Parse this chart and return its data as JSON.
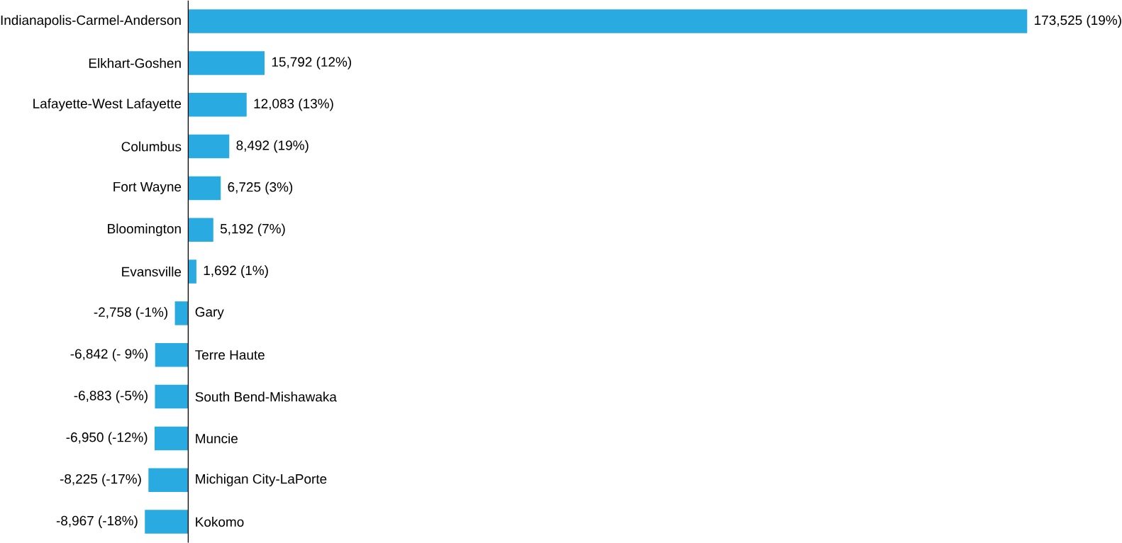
{
  "chart_data": {
    "type": "bar",
    "orientation": "horizontal",
    "color": "#29abe2",
    "categories": [
      "Indianapolis-Carmel-Anderson",
      "Elkhart-Goshen",
      "Lafayette-West Lafayette",
      "Columbus",
      "Fort Wayne",
      "Bloomington",
      "Evansville",
      "Gary",
      "Terre Haute",
      "South Bend-Mishawaka",
      "Muncie",
      "Michigan City-LaPorte",
      "Kokomo"
    ],
    "values": [
      173525,
      15792,
      12083,
      8492,
      6725,
      5192,
      1692,
      -2758,
      -6842,
      -6883,
      -6950,
      -8225,
      -8967
    ],
    "value_labels": [
      "173,525 (19%)",
      "15,792 (12%)",
      "12,083 (13%)",
      "8,492 (19%)",
      "6,725 (3%)",
      "5,192 (7%)",
      "1,692 (1%)",
      "-2,758 (-1%)",
      "-6,842 (- 9%)",
      "-6,883 (-5%)",
      "-6,950 (-12%)",
      "-8,225 (-17%)",
      "-8,967 (-18%)"
    ]
  }
}
